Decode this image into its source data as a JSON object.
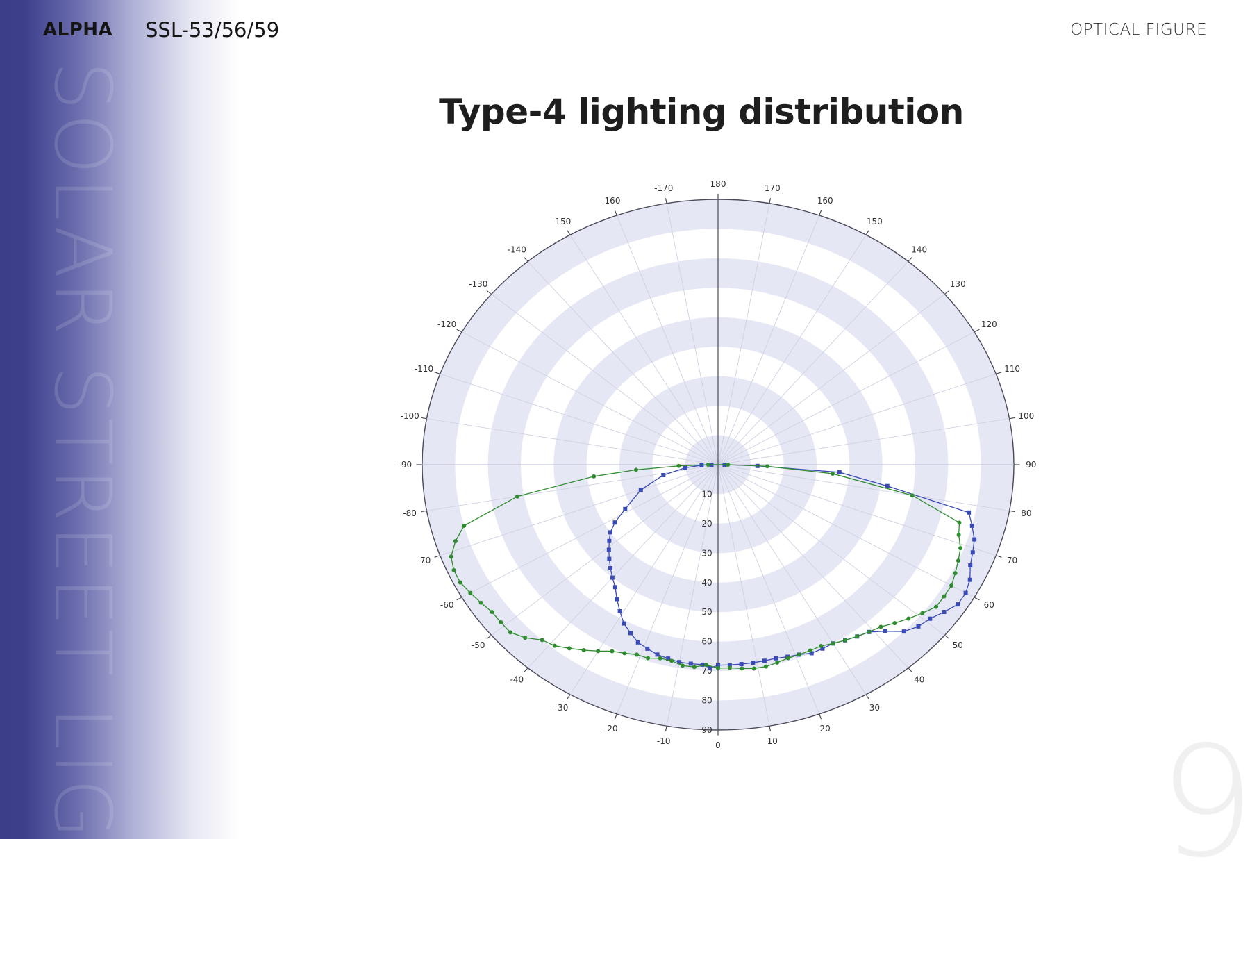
{
  "header": {
    "brand": "ALPHA",
    "model": "SSL-53/56/59",
    "section": "OPTICAL FIGURE"
  },
  "sidebar": {
    "vertical_text": "SOLAR STREET LIGHT"
  },
  "page": {
    "number": "9"
  },
  "title": "Type-4 lighting distribution",
  "colors": {
    "band": "#e6e7f4",
    "grid": "#cfd0e2",
    "axis": "#4a4a5a",
    "series_blue": "#3a4bb5",
    "series_green": "#2e8b2e",
    "sidebar": "#3d3d8a"
  },
  "chart_data": {
    "type": "polar",
    "radial_range": [
      0,
      90
    ],
    "radial_ticks": [
      0,
      10,
      20,
      30,
      40,
      50,
      60,
      70,
      80,
      90
    ],
    "angle_labels": [
      "0",
      "10",
      "20",
      "30",
      "40",
      "50",
      "60",
      "70",
      "80",
      "90",
      "100",
      "110",
      "120",
      "130",
      "140",
      "150",
      "160",
      "170",
      "180",
      "-170",
      "-160",
      "-150",
      "-140",
      "-130",
      "-120",
      "-110",
      "-100",
      "-90",
      "-80",
      "-70",
      "-60",
      "-50",
      "-40",
      "-30",
      "-20",
      "-10"
    ],
    "series": [
      {
        "color": "blue",
        "marker": "square",
        "points": [
          {
            "angle": 0,
            "r": 68
          },
          {
            "angle": 3,
            "r": 68
          },
          {
            "angle": 6,
            "r": 68
          },
          {
            "angle": 9,
            "r": 68
          },
          {
            "angle": 12,
            "r": 68
          },
          {
            "angle": 15,
            "r": 68
          },
          {
            "angle": 18,
            "r": 68.5
          },
          {
            "angle": 21,
            "r": 69
          },
          {
            "angle": 24,
            "r": 70
          },
          {
            "angle": 27,
            "r": 70
          },
          {
            "angle": 30,
            "r": 70
          },
          {
            "angle": 33,
            "r": 71
          },
          {
            "angle": 36,
            "r": 72
          },
          {
            "angle": 39,
            "r": 73
          },
          {
            "angle": 42,
            "r": 76
          },
          {
            "angle": 45,
            "r": 80
          },
          {
            "angle": 48,
            "r": 82
          },
          {
            "angle": 51,
            "r": 83
          },
          {
            "angle": 54,
            "r": 85
          },
          {
            "angle": 57,
            "r": 87
          },
          {
            "angle": 60,
            "r": 87
          },
          {
            "angle": 63,
            "r": 86
          },
          {
            "angle": 66,
            "r": 84
          },
          {
            "angle": 69,
            "r": 83
          },
          {
            "angle": 72,
            "r": 82
          },
          {
            "angle": 75,
            "r": 80
          },
          {
            "angle": 78,
            "r": 78
          },
          {
            "angle": 82,
            "r": 52
          },
          {
            "angle": 86,
            "r": 37
          },
          {
            "angle": 88,
            "r": 12
          },
          {
            "angle": 90,
            "r": 2
          },
          {
            "angle": -90,
            "r": 2
          },
          {
            "angle": -88,
            "r": 5
          },
          {
            "angle": -84,
            "r": 10
          },
          {
            "angle": -78,
            "r": 17
          },
          {
            "angle": -70,
            "r": 25
          },
          {
            "angle": -62,
            "r": 32
          },
          {
            "angle": -58,
            "r": 37
          },
          {
            "angle": -55,
            "r": 40
          },
          {
            "angle": -52,
            "r": 42
          },
          {
            "angle": -49,
            "r": 44
          },
          {
            "angle": -46,
            "r": 46
          },
          {
            "angle": -43,
            "r": 48
          },
          {
            "angle": -40,
            "r": 50
          },
          {
            "angle": -37,
            "r": 52
          },
          {
            "angle": -34,
            "r": 55
          },
          {
            "angle": -31,
            "r": 58
          },
          {
            "angle": -28,
            "r": 61
          },
          {
            "angle": -25,
            "r": 63
          },
          {
            "angle": -22,
            "r": 65
          },
          {
            "angle": -19,
            "r": 66
          },
          {
            "angle": -16,
            "r": 67
          },
          {
            "angle": -13,
            "r": 67.5
          },
          {
            "angle": -10,
            "r": 68
          },
          {
            "angle": -7,
            "r": 68
          },
          {
            "angle": -4,
            "r": 68
          },
          {
            "angle": -2,
            "r": 69
          },
          {
            "angle": 0,
            "r": 68
          }
        ]
      },
      {
        "color": "green",
        "marker": "circle",
        "points": [
          {
            "angle": 0,
            "r": 69
          },
          {
            "angle": 3,
            "r": 69
          },
          {
            "angle": 6,
            "r": 69.5
          },
          {
            "angle": 9,
            "r": 70
          },
          {
            "angle": 12,
            "r": 70
          },
          {
            "angle": 15,
            "r": 69.5
          },
          {
            "angle": 18,
            "r": 69
          },
          {
            "angle": 21,
            "r": 69
          },
          {
            "angle": 24,
            "r": 69
          },
          {
            "angle": 27,
            "r": 69
          },
          {
            "angle": 30,
            "r": 70
          },
          {
            "angle": 33,
            "r": 71
          },
          {
            "angle": 36,
            "r": 72
          },
          {
            "angle": 39,
            "r": 73
          },
          {
            "angle": 42,
            "r": 74
          },
          {
            "angle": 45,
            "r": 76
          },
          {
            "angle": 48,
            "r": 78
          },
          {
            "angle": 51,
            "r": 80
          },
          {
            "angle": 54,
            "r": 82
          },
          {
            "angle": 57,
            "r": 82
          },
          {
            "angle": 60,
            "r": 82
          },
          {
            "angle": 63,
            "r": 81
          },
          {
            "angle": 66,
            "r": 80
          },
          {
            "angle": 69,
            "r": 79
          },
          {
            "angle": 72,
            "r": 77
          },
          {
            "angle": 75,
            "r": 76
          },
          {
            "angle": 80,
            "r": 60
          },
          {
            "angle": 85,
            "r": 35
          },
          {
            "angle": 88,
            "r": 15
          },
          {
            "angle": 90,
            "r": 3
          },
          {
            "angle": -90,
            "r": 3
          },
          {
            "angle": -88,
            "r": 12
          },
          {
            "angle": -86,
            "r": 25
          },
          {
            "angle": -84,
            "r": 38
          },
          {
            "angle": -80,
            "r": 62
          },
          {
            "angle": -75,
            "r": 80
          },
          {
            "angle": -72,
            "r": 84
          },
          {
            "angle": -69,
            "r": 87
          },
          {
            "angle": -66,
            "r": 88
          },
          {
            "angle": -63,
            "r": 88
          },
          {
            "angle": -60,
            "r": 87
          },
          {
            "angle": -57,
            "r": 86
          },
          {
            "angle": -54,
            "r": 85
          },
          {
            "angle": -51,
            "r": 85
          },
          {
            "angle": -48,
            "r": 85
          },
          {
            "angle": -45,
            "r": 83
          },
          {
            "angle": -42,
            "r": 80
          },
          {
            "angle": -39,
            "r": 79
          },
          {
            "angle": -36,
            "r": 77
          },
          {
            "angle": -33,
            "r": 75
          },
          {
            "angle": -30,
            "r": 73
          },
          {
            "angle": -27,
            "r": 71
          },
          {
            "angle": -24,
            "r": 70
          },
          {
            "angle": -21,
            "r": 69
          },
          {
            "angle": -18,
            "r": 69
          },
          {
            "angle": -15,
            "r": 68
          },
          {
            "angle": -12,
            "r": 68
          },
          {
            "angle": -9,
            "r": 69
          },
          {
            "angle": -6,
            "r": 69
          },
          {
            "angle": -3,
            "r": 68
          },
          {
            "angle": 0,
            "r": 69
          }
        ]
      }
    ]
  }
}
